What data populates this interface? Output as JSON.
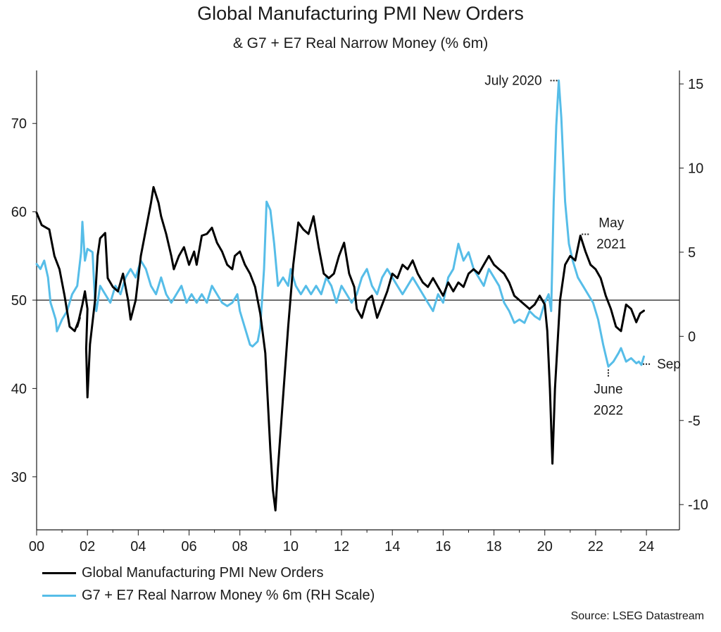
{
  "chart_data": {
    "type": "line",
    "title": "Global Manufacturing PMI New Orders",
    "subtitle": "& G7 + E7 Real Narrow Money (% 6m)",
    "x_ticks": [
      "00",
      "02",
      "04",
      "06",
      "08",
      "10",
      "12",
      "14",
      "16",
      "18",
      "20",
      "22",
      "24"
    ],
    "x_range": [
      2000,
      2025.3
    ],
    "y_left": {
      "range": [
        24,
        76
      ],
      "ticks": [
        30,
        40,
        50,
        60,
        70
      ],
      "reference_line": 50
    },
    "y_right": {
      "range": [
        -11.5,
        15.8
      ],
      "ticks": [
        -10,
        -5,
        0,
        5,
        10,
        15
      ]
    },
    "series": [
      {
        "name": "Global Manufacturing PMI New Orders",
        "axis": "left",
        "color": "#000000",
        "points": [
          [
            2000.0,
            59.9
          ],
          [
            2000.2,
            58.5
          ],
          [
            2000.5,
            58.0
          ],
          [
            2000.7,
            55.0
          ],
          [
            2000.9,
            53.5
          ],
          [
            2001.1,
            50.5
          ],
          [
            2001.3,
            47.0
          ],
          [
            2001.5,
            46.5
          ],
          [
            2001.7,
            48.0
          ],
          [
            2001.6,
            47.0
          ],
          [
            2001.8,
            49.5
          ],
          [
            2001.9,
            51.0
          ],
          [
            2002.0,
            49.0
          ],
          [
            2001.95,
            44.5
          ],
          [
            2002.0,
            39.0
          ],
          [
            2002.1,
            45.0
          ],
          [
            2002.3,
            50.0
          ],
          [
            2002.4,
            55.0
          ],
          [
            2002.5,
            57.0
          ],
          [
            2002.7,
            57.6
          ],
          [
            2002.8,
            52.5
          ],
          [
            2003.0,
            51.5
          ],
          [
            2003.2,
            51.0
          ],
          [
            2003.4,
            53.0
          ],
          [
            2003.6,
            50.0
          ],
          [
            2003.7,
            47.8
          ],
          [
            2003.9,
            50.0
          ],
          [
            2004.1,
            55.0
          ],
          [
            2004.3,
            58.0
          ],
          [
            2004.5,
            61.0
          ],
          [
            2004.6,
            62.8
          ],
          [
            2004.8,
            61.0
          ],
          [
            2004.9,
            59.5
          ],
          [
            2005.1,
            57.5
          ],
          [
            2005.3,
            55.0
          ],
          [
            2005.4,
            53.5
          ],
          [
            2005.6,
            55.0
          ],
          [
            2005.8,
            56.0
          ],
          [
            2006.0,
            54.0
          ],
          [
            2006.2,
            55.5
          ],
          [
            2006.3,
            54.0
          ],
          [
            2006.5,
            57.3
          ],
          [
            2006.7,
            57.5
          ],
          [
            2006.9,
            58.2
          ],
          [
            2007.1,
            56.5
          ],
          [
            2007.3,
            55.5
          ],
          [
            2007.5,
            54.0
          ],
          [
            2007.7,
            53.5
          ],
          [
            2007.8,
            55.0
          ],
          [
            2008.0,
            55.5
          ],
          [
            2008.2,
            54.0
          ],
          [
            2008.4,
            53.0
          ],
          [
            2008.6,
            51.5
          ],
          [
            2008.8,
            48.5
          ],
          [
            2009.0,
            44.0
          ],
          [
            2009.1,
            38.5
          ],
          [
            2009.2,
            33.0
          ],
          [
            2009.3,
            28.5
          ],
          [
            2009.4,
            26.2
          ],
          [
            2009.5,
            31.0
          ],
          [
            2009.7,
            39.0
          ],
          [
            2009.9,
            47.0
          ],
          [
            2010.1,
            54.0
          ],
          [
            2010.3,
            58.8
          ],
          [
            2010.5,
            58.0
          ],
          [
            2010.7,
            57.5
          ],
          [
            2010.9,
            59.5
          ],
          [
            2011.1,
            56.0
          ],
          [
            2011.3,
            53.0
          ],
          [
            2011.5,
            52.5
          ],
          [
            2011.7,
            53.0
          ],
          [
            2011.9,
            55.0
          ],
          [
            2012.1,
            56.5
          ],
          [
            2012.3,
            53.0
          ],
          [
            2012.5,
            51.5
          ],
          [
            2012.6,
            49.0
          ],
          [
            2012.8,
            48.0
          ],
          [
            2013.0,
            50.0
          ],
          [
            2013.2,
            50.5
          ],
          [
            2013.4,
            48.0
          ],
          [
            2013.6,
            49.5
          ],
          [
            2013.8,
            51.0
          ],
          [
            2014.0,
            53.0
          ],
          [
            2014.2,
            52.5
          ],
          [
            2014.4,
            54.0
          ],
          [
            2014.6,
            53.5
          ],
          [
            2014.8,
            54.5
          ],
          [
            2015.0,
            53.0
          ],
          [
            2015.2,
            52.0
          ],
          [
            2015.4,
            51.5
          ],
          [
            2015.6,
            52.5
          ],
          [
            2015.8,
            51.5
          ],
          [
            2016.0,
            50.5
          ],
          [
            2016.2,
            52.0
          ],
          [
            2016.4,
            51.0
          ],
          [
            2016.6,
            52.0
          ],
          [
            2016.8,
            51.5
          ],
          [
            2017.0,
            53.0
          ],
          [
            2017.2,
            53.5
          ],
          [
            2017.4,
            53.0
          ],
          [
            2017.6,
            54.0
          ],
          [
            2017.8,
            55.0
          ],
          [
            2018.0,
            54.0
          ],
          [
            2018.2,
            53.5
          ],
          [
            2018.4,
            53.0
          ],
          [
            2018.6,
            52.0
          ],
          [
            2018.8,
            50.5
          ],
          [
            2019.0,
            50.0
          ],
          [
            2019.2,
            49.5
          ],
          [
            2019.4,
            49.0
          ],
          [
            2019.6,
            49.5
          ],
          [
            2019.8,
            50.5
          ],
          [
            2020.0,
            49.5
          ],
          [
            2020.1,
            46.5
          ],
          [
            2020.2,
            40.0
          ],
          [
            2020.3,
            31.5
          ],
          [
            2020.4,
            40.0
          ],
          [
            2020.6,
            50.0
          ],
          [
            2020.8,
            54.0
          ],
          [
            2021.0,
            55.0
          ],
          [
            2021.2,
            54.5
          ],
          [
            2021.4,
            57.3
          ],
          [
            2021.6,
            55.5
          ],
          [
            2021.8,
            54.0
          ],
          [
            2022.0,
            53.5
          ],
          [
            2022.2,
            52.5
          ],
          [
            2022.4,
            50.5
          ],
          [
            2022.6,
            49.0
          ],
          [
            2022.8,
            47.0
          ],
          [
            2023.0,
            46.5
          ],
          [
            2023.2,
            49.5
          ],
          [
            2023.4,
            49.0
          ],
          [
            2023.6,
            47.5
          ],
          [
            2023.75,
            48.5
          ],
          [
            2023.9,
            48.8
          ]
        ]
      },
      {
        "name": "G7 + E7 Real Narrow Money % 6m (RH Scale)",
        "axis": "right",
        "color": "#56bde8",
        "points": [
          [
            2000.0,
            4.3
          ],
          [
            2000.15,
            4.0
          ],
          [
            2000.3,
            4.5
          ],
          [
            2000.45,
            3.5
          ],
          [
            2000.55,
            2.0
          ],
          [
            2000.65,
            1.5
          ],
          [
            2000.75,
            1.0
          ],
          [
            2000.8,
            0.3
          ],
          [
            2001.0,
            1.0
          ],
          [
            2001.2,
            1.5
          ],
          [
            2001.4,
            2.5
          ],
          [
            2001.6,
            3.0
          ],
          [
            2001.75,
            5.0
          ],
          [
            2001.8,
            6.8
          ],
          [
            2001.9,
            4.5
          ],
          [
            2002.0,
            5.2
          ],
          [
            2002.2,
            5.0
          ],
          [
            2002.3,
            2.0
          ],
          [
            2002.35,
            1.5
          ],
          [
            2002.5,
            3.0
          ],
          [
            2002.7,
            2.5
          ],
          [
            2002.9,
            2.0
          ],
          [
            2003.1,
            3.0
          ],
          [
            2003.3,
            2.5
          ],
          [
            2003.5,
            3.5
          ],
          [
            2003.7,
            4.0
          ],
          [
            2003.9,
            3.5
          ],
          [
            2004.1,
            4.5
          ],
          [
            2004.3,
            4.0
          ],
          [
            2004.5,
            3.0
          ],
          [
            2004.7,
            2.5
          ],
          [
            2004.9,
            3.5
          ],
          [
            2005.1,
            2.5
          ],
          [
            2005.3,
            2.0
          ],
          [
            2005.5,
            2.5
          ],
          [
            2005.7,
            3.0
          ],
          [
            2005.9,
            2.0
          ],
          [
            2006.1,
            2.5
          ],
          [
            2006.3,
            2.0
          ],
          [
            2006.5,
            2.5
          ],
          [
            2006.7,
            2.0
          ],
          [
            2006.9,
            3.0
          ],
          [
            2007.1,
            2.5
          ],
          [
            2007.3,
            2.0
          ],
          [
            2007.5,
            1.8
          ],
          [
            2007.7,
            2.0
          ],
          [
            2007.9,
            2.5
          ],
          [
            2008.0,
            1.5
          ],
          [
            2008.2,
            0.5
          ],
          [
            2008.4,
            -0.5
          ],
          [
            2008.5,
            -0.6
          ],
          [
            2008.7,
            -0.3
          ],
          [
            2008.8,
            0.5
          ],
          [
            2008.95,
            4.0
          ],
          [
            2009.05,
            8.0
          ],
          [
            2009.2,
            7.5
          ],
          [
            2009.35,
            5.5
          ],
          [
            2009.5,
            3.0
          ],
          [
            2009.7,
            3.5
          ],
          [
            2009.9,
            3.0
          ],
          [
            2010.0,
            4.0
          ],
          [
            2010.2,
            3.0
          ],
          [
            2010.4,
            2.5
          ],
          [
            2010.6,
            3.0
          ],
          [
            2010.8,
            2.5
          ],
          [
            2011.0,
            3.0
          ],
          [
            2011.2,
            2.5
          ],
          [
            2011.4,
            3.5
          ],
          [
            2011.6,
            3.0
          ],
          [
            2011.8,
            2.0
          ],
          [
            2012.0,
            3.0
          ],
          [
            2012.2,
            2.5
          ],
          [
            2012.4,
            2.0
          ],
          [
            2012.6,
            2.5
          ],
          [
            2012.8,
            3.5
          ],
          [
            2013.0,
            4.0
          ],
          [
            2013.2,
            3.0
          ],
          [
            2013.4,
            2.5
          ],
          [
            2013.6,
            3.5
          ],
          [
            2013.8,
            4.0
          ],
          [
            2014.0,
            3.5
          ],
          [
            2014.2,
            3.0
          ],
          [
            2014.4,
            2.5
          ],
          [
            2014.6,
            3.0
          ],
          [
            2014.8,
            3.5
          ],
          [
            2015.0,
            3.0
          ],
          [
            2015.2,
            2.5
          ],
          [
            2015.4,
            2.0
          ],
          [
            2015.6,
            1.5
          ],
          [
            2015.8,
            2.5
          ],
          [
            2016.0,
            2.0
          ],
          [
            2016.2,
            3.5
          ],
          [
            2016.4,
            4.0
          ],
          [
            2016.6,
            5.5
          ],
          [
            2016.8,
            4.5
          ],
          [
            2017.0,
            5.0
          ],
          [
            2017.2,
            4.0
          ],
          [
            2017.4,
            3.5
          ],
          [
            2017.6,
            3.0
          ],
          [
            2017.8,
            4.0
          ],
          [
            2018.0,
            3.5
          ],
          [
            2018.2,
            3.0
          ],
          [
            2018.4,
            2.0
          ],
          [
            2018.6,
            1.5
          ],
          [
            2018.8,
            0.8
          ],
          [
            2019.0,
            1.0
          ],
          [
            2019.2,
            0.8
          ],
          [
            2019.4,
            1.5
          ],
          [
            2019.6,
            1.2
          ],
          [
            2019.8,
            1.0
          ],
          [
            2020.0,
            2.0
          ],
          [
            2020.15,
            2.5
          ],
          [
            2020.25,
            1.5
          ],
          [
            2020.35,
            8.0
          ],
          [
            2020.45,
            12.5
          ],
          [
            2020.55,
            15.2
          ],
          [
            2020.65,
            13.0
          ],
          [
            2020.8,
            8.0
          ],
          [
            2020.95,
            5.5
          ],
          [
            2021.1,
            4.5
          ],
          [
            2021.3,
            3.5
          ],
          [
            2021.5,
            3.0
          ],
          [
            2021.7,
            2.5
          ],
          [
            2021.9,
            2.0
          ],
          [
            2022.1,
            1.0
          ],
          [
            2022.3,
            -0.5
          ],
          [
            2022.5,
            -1.8
          ],
          [
            2022.7,
            -1.5
          ],
          [
            2022.9,
            -1.0
          ],
          [
            2023.0,
            -0.7
          ],
          [
            2023.2,
            -1.5
          ],
          [
            2023.4,
            -1.3
          ],
          [
            2023.6,
            -1.6
          ],
          [
            2023.7,
            -1.5
          ],
          [
            2023.8,
            -1.7
          ],
          [
            2023.9,
            -1.2
          ]
        ]
      }
    ],
    "annotations": [
      {
        "text": "July 2020",
        "series": 1,
        "x": 2020.55,
        "y": 15.2
      },
      {
        "text": "May",
        "line2": "2021",
        "series": 0,
        "x": 2021.4,
        "y": 57.3
      },
      {
        "text": "June",
        "line2": "2022",
        "series": 1,
        "x": 2022.5,
        "y": -1.8
      },
      {
        "text": "Sep",
        "series": 1,
        "x": 2023.75,
        "y": -1.65
      }
    ],
    "source": "Source: LSEG Datastream"
  }
}
